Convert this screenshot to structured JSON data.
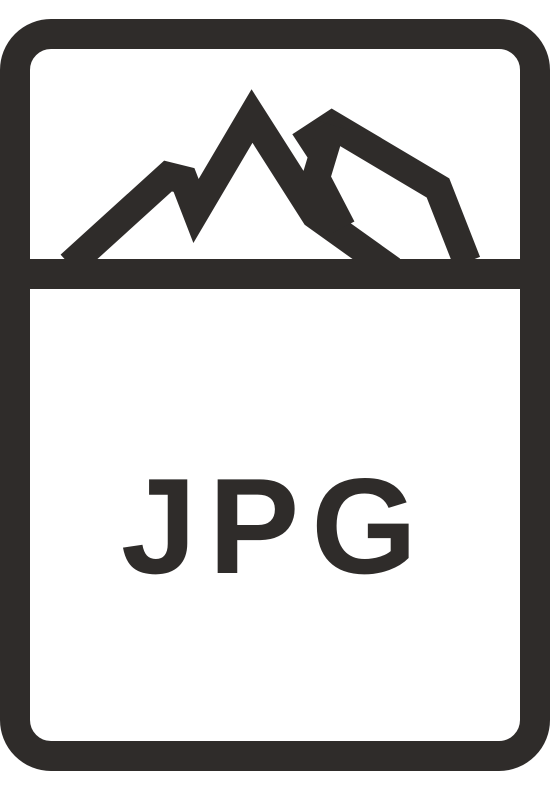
{
  "file_icon": {
    "label": "JPG",
    "icon": "jpg-file-icon",
    "picture_icon": "mountain-icon",
    "colors": {
      "stroke": "#2f2c2a",
      "fill": "#ffffff"
    }
  }
}
